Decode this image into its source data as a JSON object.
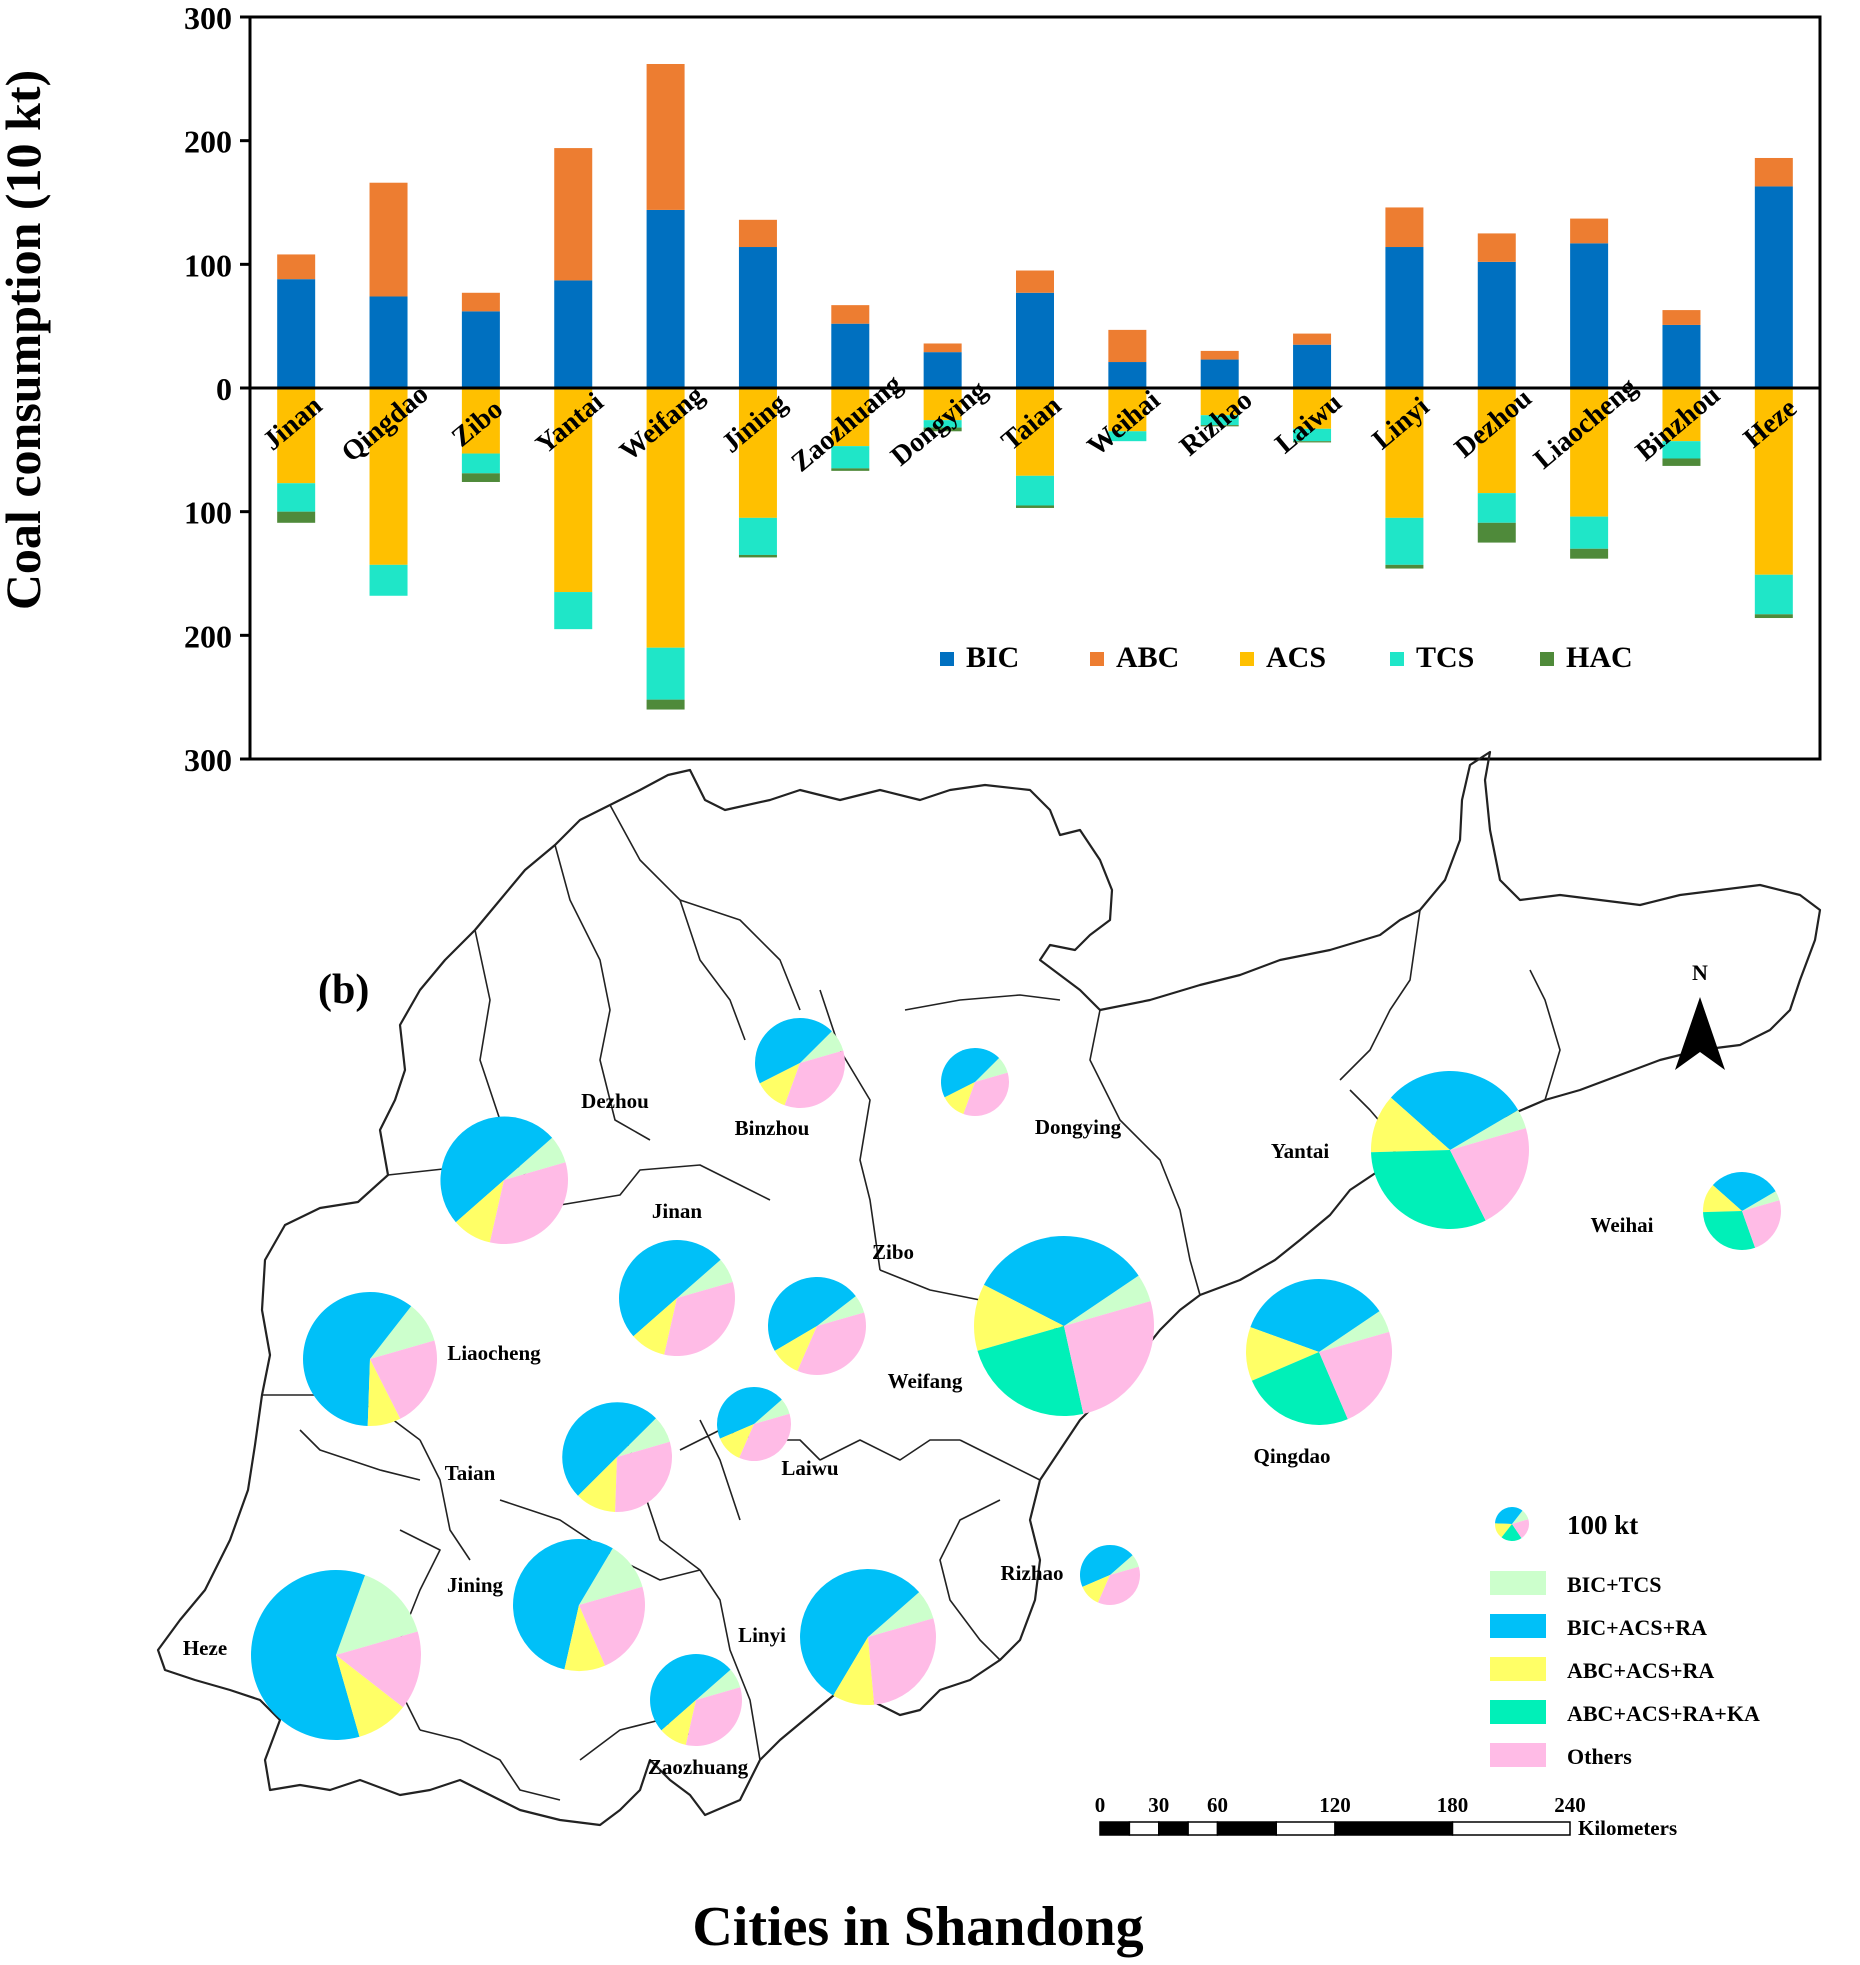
{
  "chart_data": [
    {
      "type": "bar",
      "stacked": true,
      "ylabel": "Coal consumption (10 kt)",
      "xlabel": "",
      "ylim": [
        -300,
        300
      ],
      "yticks": [
        300,
        200,
        100,
        0,
        100,
        200,
        300
      ],
      "grid": false,
      "legend_position": "bottom-right",
      "categories": [
        "Jinan",
        "Qingdao",
        "Zibo",
        "Yantai",
        "Weifang",
        "Jining",
        "Zaozhuang",
        "Dongying",
        "Taian",
        "Weihai",
        "Rizhao",
        "Laiwu",
        "Linyi",
        "Dezhou",
        "Liaocheng",
        "Binzhou",
        "Heze"
      ],
      "series": [
        {
          "name": "BIC",
          "color": "#0070C0",
          "direction": "up",
          "values": [
            88,
            74,
            62,
            87,
            144,
            114,
            52,
            29,
            77,
            21,
            23,
            35,
            114,
            102,
            117,
            51,
            163
          ]
        },
        {
          "name": "ABC",
          "color": "#ED7D31",
          "direction": "up",
          "values": [
            20,
            92,
            15,
            107,
            118,
            22,
            15,
            7,
            18,
            26,
            7,
            9,
            32,
            23,
            20,
            12,
            23
          ]
        },
        {
          "name": "ACS",
          "color": "#FFC000",
          "direction": "down",
          "values": [
            77,
            143,
            53,
            165,
            210,
            105,
            47,
            26,
            71,
            35,
            22,
            33,
            105,
            85,
            104,
            43,
            151
          ]
        },
        {
          "name": "TCS",
          "color": "#1FE6C8",
          "direction": "down",
          "values": [
            23,
            25,
            16,
            30,
            42,
            30,
            18,
            6,
            24,
            8,
            8,
            10,
            38,
            24,
            26,
            14,
            32
          ]
        },
        {
          "name": "HAC",
          "color": "#4F8A3A",
          "direction": "down",
          "values": [
            9,
            0,
            7,
            0,
            8,
            2,
            2,
            3,
            2,
            0,
            1,
            1,
            3,
            16,
            8,
            6,
            3
          ]
        }
      ]
    },
    {
      "type": "pie",
      "panel_label": "(b)",
      "title": "Cities in Shandong",
      "size_legend_label": "100 kt",
      "categories": [
        "BIC+TCS",
        "BIC+ACS+RA",
        "ABC+ACS+RA",
        "ABC+ACS+RA+KA",
        "Others"
      ],
      "colors": [
        "#CCFFCC",
        "#00C0F8",
        "#FFFF66",
        "#00F0B8",
        "#FFBBE6"
      ],
      "cities": [
        {
          "name": "Dezhou",
          "total": 125,
          "shares": [
            0.07,
            0.5,
            0.1,
            0.0,
            0.33
          ]
        },
        {
          "name": "Binzhou",
          "total": 62,
          "shares": [
            0.08,
            0.45,
            0.12,
            0.0,
            0.35
          ]
        },
        {
          "name": "Dongying",
          "total": 37,
          "shares": [
            0.08,
            0.45,
            0.12,
            0.0,
            0.35
          ]
        },
        {
          "name": "Yantai",
          "total": 195,
          "shares": [
            0.04,
            0.3,
            0.12,
            0.32,
            0.22
          ]
        },
        {
          "name": "Weihai",
          "total": 47,
          "shares": [
            0.04,
            0.3,
            0.12,
            0.3,
            0.24
          ]
        },
        {
          "name": "Jinan",
          "total": 108,
          "shares": [
            0.07,
            0.5,
            0.1,
            0.0,
            0.33
          ]
        },
        {
          "name": "Zibo",
          "total": 77,
          "shares": [
            0.06,
            0.48,
            0.1,
            0.0,
            0.36
          ]
        },
        {
          "name": "Liaocheng",
          "total": 137,
          "shares": [
            0.1,
            0.6,
            0.08,
            0.0,
            0.22
          ]
        },
        {
          "name": "Weifang",
          "total": 262,
          "shares": [
            0.05,
            0.33,
            0.12,
            0.24,
            0.26
          ]
        },
        {
          "name": "Qingdao",
          "total": 166,
          "shares": [
            0.05,
            0.35,
            0.12,
            0.25,
            0.23
          ]
        },
        {
          "name": "Laiwu",
          "total": 44,
          "shares": [
            0.07,
            0.45,
            0.12,
            0.0,
            0.36
          ]
        },
        {
          "name": "Taian",
          "total": 95,
          "shares": [
            0.08,
            0.5,
            0.12,
            0.0,
            0.3
          ]
        },
        {
          "name": "Rizhao",
          "total": 30,
          "shares": [
            0.07,
            0.45,
            0.12,
            0.0,
            0.36
          ]
        },
        {
          "name": "Jining",
          "total": 136,
          "shares": [
            0.12,
            0.55,
            0.1,
            0.0,
            0.23
          ]
        },
        {
          "name": "Heze",
          "total": 186,
          "shares": [
            0.15,
            0.6,
            0.1,
            0.0,
            0.15
          ]
        },
        {
          "name": "Linyi",
          "total": 147,
          "shares": [
            0.07,
            0.55,
            0.1,
            0.0,
            0.28
          ]
        },
        {
          "name": "Zaozhuang",
          "total": 67,
          "shares": [
            0.07,
            0.5,
            0.1,
            0.0,
            0.33
          ]
        }
      ]
    }
  ],
  "map": {
    "north_label": "N",
    "scale_labels": [
      "0",
      "30",
      "60",
      "120",
      "180",
      "240"
    ],
    "scale_unit": "Kilometers"
  }
}
